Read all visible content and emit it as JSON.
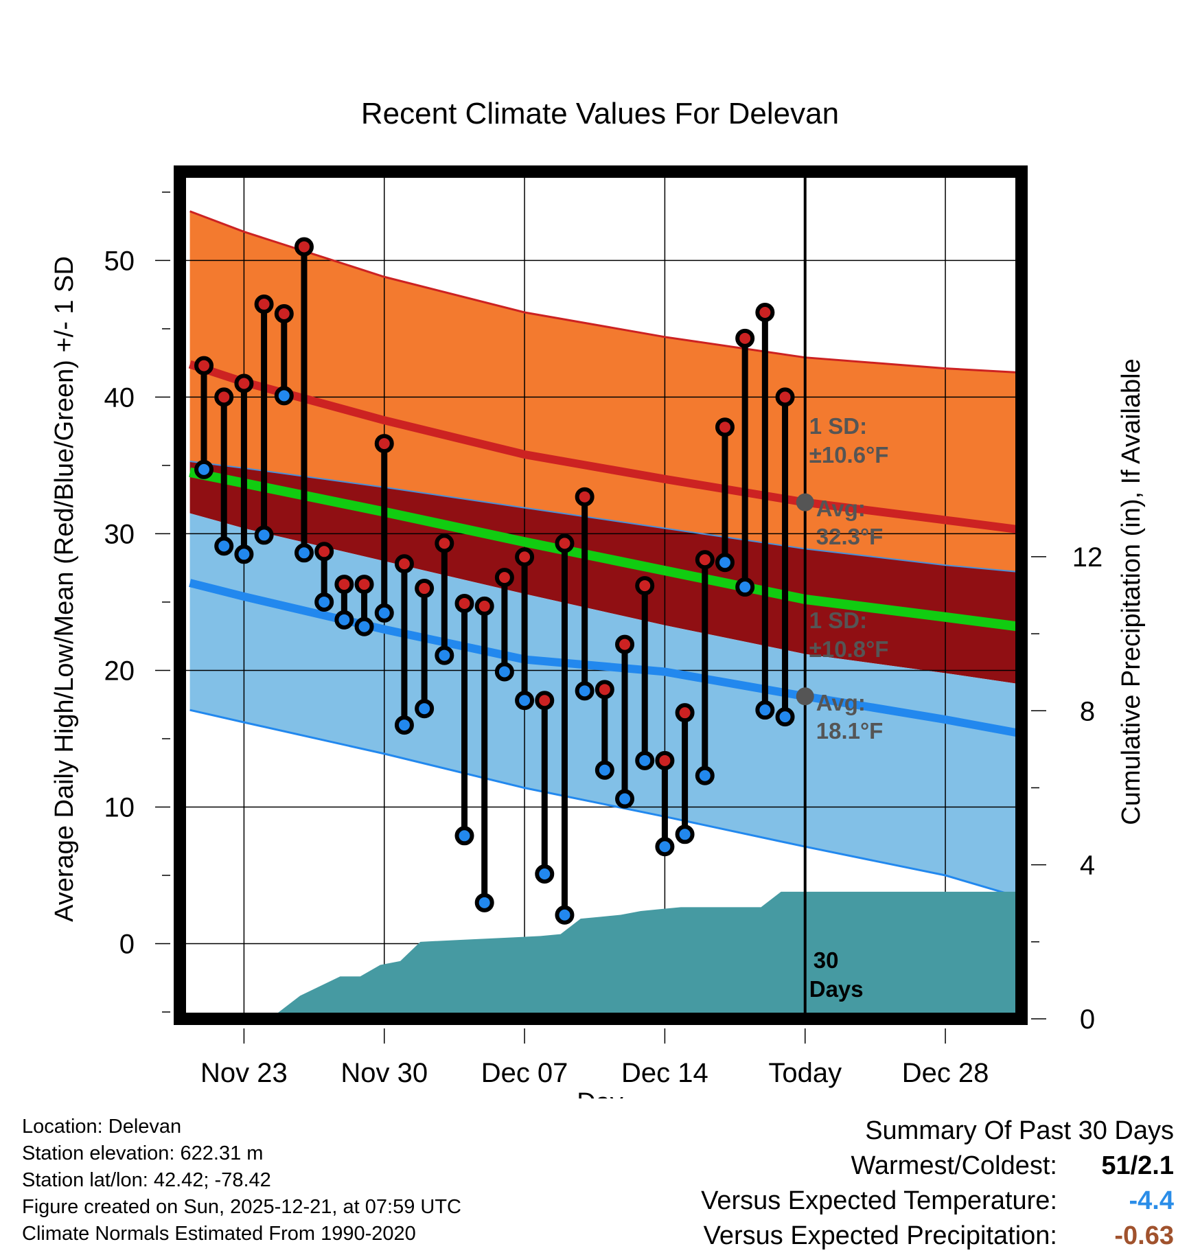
{
  "chart_data": {
    "type": "line",
    "title": "Recent Climate Values For Delevan",
    "xlabel": "Day",
    "ylabel": "Average Daily High/Low/Mean (Red/Blue/Green) +/- 1 SD",
    "y2label": "Cumulative Precipitation (in), If Available",
    "xlim": [
      -3.2,
      38.8
    ],
    "ylim": [
      -5.5,
      56.5
    ],
    "y2lim": [
      0,
      22
    ],
    "x_ticks": [
      {
        "x": 0,
        "label": "Nov 23"
      },
      {
        "x": 7,
        "label": "Nov 30"
      },
      {
        "x": 14,
        "label": "Dec 07"
      },
      {
        "x": 21,
        "label": "Dec 14"
      },
      {
        "x": 28,
        "label": "Today"
      },
      {
        "x": 35,
        "label": "Dec 28"
      }
    ],
    "y_ticks": [
      0,
      10,
      20,
      30,
      40,
      50
    ],
    "y2_ticks": [
      0,
      4,
      8,
      12
    ],
    "today_x": 28,
    "normals": {
      "x": [
        -2.7,
        0,
        7,
        14,
        21,
        28,
        35,
        38.7
      ],
      "high_plus_sd": [
        53.6,
        52.1,
        48.8,
        46.2,
        44.4,
        42.9,
        42.1,
        41.8
      ],
      "high_avg": [
        42.4,
        41.1,
        38.3,
        35.8,
        34.0,
        32.3,
        31.0,
        30.3
      ],
      "high_minus_sd": [
        35.3,
        34.8,
        33.4,
        31.9,
        30.4,
        28.9,
        27.7,
        27.2
      ],
      "mean": [
        34.5,
        33.7,
        31.6,
        29.4,
        27.3,
        25.2,
        23.9,
        23.2
      ],
      "low_plus_sd": [
        31.5,
        30.4,
        28.0,
        25.6,
        23.3,
        21.2,
        19.8,
        19.0
      ],
      "low_avg": [
        26.4,
        25.4,
        23.0,
        20.8,
        19.9,
        18.1,
        16.4,
        15.4
      ],
      "low_minus_sd": [
        17.1,
        16.2,
        13.9,
        11.4,
        9.3,
        7.1,
        5.0,
        3.4
      ]
    },
    "series": [
      {
        "name": "High",
        "color": "#cc2222",
        "values": [
          42.3,
          40.0,
          41.0,
          46.8,
          46.1,
          51.0,
          28.7,
          26.3,
          26.3,
          36.6,
          27.8,
          26.0,
          29.3,
          24.9,
          24.7,
          26.8,
          28.3,
          17.8,
          29.3,
          32.7,
          18.6,
          21.9,
          26.2,
          13.4,
          16.9,
          28.1,
          37.8,
          44.3,
          46.2,
          40.0
        ]
      },
      {
        "name": "Low",
        "color": "#2288ee",
        "values": [
          34.7,
          29.1,
          28.5,
          29.9,
          40.1,
          28.6,
          25.0,
          23.7,
          23.2,
          24.2,
          16.0,
          17.2,
          21.1,
          7.9,
          3.0,
          19.9,
          17.8,
          5.1,
          2.1,
          18.5,
          12.7,
          10.6,
          13.4,
          7.1,
          8.0,
          12.3,
          27.9,
          26.1,
          17.1,
          16.6
        ]
      }
    ],
    "day_x": [
      -2,
      -1,
      0,
      1,
      2,
      3,
      4,
      5,
      6,
      7,
      8,
      9,
      10,
      11,
      12,
      13,
      14,
      15,
      16,
      17,
      18,
      19,
      20,
      21,
      22,
      23,
      24,
      25,
      26,
      27
    ],
    "precip": {
      "x": [
        -3.2,
        1.3,
        2.8,
        4.8,
        5.8,
        6.8,
        7.8,
        8.8,
        10.8,
        12.8,
        14.8,
        15.8,
        16.8,
        17.8,
        18.8,
        19.8,
        20.8,
        21.8,
        22.8,
        23.8,
        24.8,
        25.8,
        26.8,
        38.8
      ],
      "values": [
        0,
        0,
        0.6,
        1.1,
        1.1,
        1.4,
        1.5,
        2.0,
        2.05,
        2.1,
        2.15,
        2.2,
        2.6,
        2.65,
        2.7,
        2.8,
        2.85,
        2.9,
        2.9,
        2.9,
        2.9,
        2.9,
        3.3,
        3.3
      ]
    },
    "annotations": {
      "high_sd_label": "1 SD:",
      "high_sd_value": "±10.6°F",
      "high_avg_label": "Avg:",
      "high_avg_value": "32.3°F",
      "high_avg": 32.3,
      "low_sd_label": "1 SD:",
      "low_sd_value": "±10.8°F",
      "low_avg_label": "Avg:",
      "low_avg_value": "18.1°F",
      "low_avg": 18.1,
      "window_number": "30",
      "window_word": "Days"
    },
    "colors": {
      "high_band": "#f37a2f",
      "mid_band": "#900f13",
      "low_band": "#82c0e7",
      "high_line": "#cc2222",
      "mean_line": "#11cc11",
      "low_line": "#2288ee",
      "precip": "#469aa2",
      "annotation": "#555555"
    }
  },
  "info": {
    "location": "Location: Delevan",
    "elevation": "Station elevation: 622.31 m",
    "latlon": "Station lat/lon: 42.42; -78.42",
    "created": "Figure created on Sun, 2025-12-21, at 07:59 UTC",
    "normals": "Climate Normals Estimated From 1990-2020"
  },
  "summary": {
    "heading": "Summary Of Past 30 Days",
    "warmest_label": "Warmest/Coldest:",
    "warmest_value": "51/2.1",
    "temp_label": "Versus Expected Temperature:",
    "temp_value": "-4.4",
    "temp_color": "#2a8de8",
    "precip_label": "Versus Expected Precipitation:",
    "precip_value": "-0.63",
    "precip_color": "#a0522d"
  }
}
